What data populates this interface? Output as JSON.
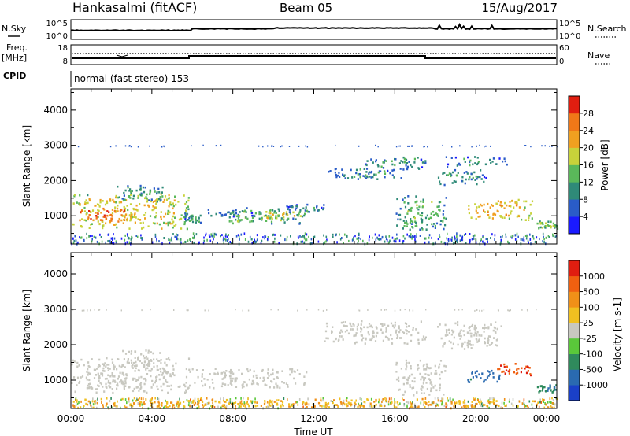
{
  "header": {
    "station": "Hankasalmi (fitACF)",
    "beam": "Beam 05",
    "date": "15/Aug/2017"
  },
  "noise_panel": {
    "left_label": "N.Sky",
    "left_ticks": [
      "10^5",
      "10^0"
    ],
    "right_label": "N.Search",
    "right_ticks": [
      "10^5",
      "10^0"
    ]
  },
  "freq_panel": {
    "left_label_1": "Freq.",
    "left_label_2": "[MHz]",
    "left_ticks": [
      "18",
      "8"
    ],
    "right_label": "Nave",
    "right_ticks": [
      "60",
      "0"
    ]
  },
  "cpid_panel": {
    "label": "CPID",
    "mode_text": "normal (fast stereo) 153"
  },
  "chart_data": [
    {
      "type": "heatmap",
      "title": "",
      "quantity": "Power",
      "xlabel": "Time UT",
      "ylabel": "Slant Range [km]",
      "xlim": [
        "00:00",
        "24:00"
      ],
      "x_tick_labels": [
        "00:00",
        "04:00",
        "08:00",
        "12:00",
        "16:00",
        "20:00",
        "00:00"
      ],
      "ylim": [
        200,
        4600
      ],
      "y_tick_labels": [
        "1000",
        "2000",
        "3000",
        "4000"
      ],
      "colorbar": {
        "label": "Power [dB]",
        "tick_labels": [
          "4",
          "8",
          "12",
          "16",
          "20",
          "24",
          "28"
        ],
        "range": [
          0,
          32
        ],
        "colors": [
          "#1a1aff",
          "#2a5cc8",
          "#2f8a78",
          "#5ab85a",
          "#c8d23a",
          "#f0a020",
          "#f07818",
          "#e01e10"
        ]
      },
      "regions": [
        {
          "t": [
            0.0,
            5.8
          ],
          "r": [
            650,
            1650
          ],
          "level": 0.62
        },
        {
          "t": [
            0.2,
            3.0
          ],
          "r": [
            850,
            1250
          ],
          "level": 0.85
        },
        {
          "t": [
            5.6,
            6.4
          ],
          "r": [
            800,
            1100
          ],
          "level": 0.35
        },
        {
          "t": [
            6.2,
            9.0
          ],
          "r": [
            1000,
            1200
          ],
          "level": 0.25
        },
        {
          "t": [
            7.5,
            11.5
          ],
          "r": [
            800,
            1250
          ],
          "level": 0.42
        },
        {
          "t": [
            9.2,
            11.6
          ],
          "r": [
            950,
            1150
          ],
          "level": 0.6
        },
        {
          "t": [
            10.5,
            12.5
          ],
          "r": [
            1100,
            1350
          ],
          "level": 0.28
        },
        {
          "t": [
            2.2,
            4.5
          ],
          "r": [
            1400,
            1900
          ],
          "level": 0.35
        },
        {
          "t": [
            12.5,
            16.5
          ],
          "r": [
            2050,
            2400
          ],
          "level": 0.3
        },
        {
          "t": [
            14.5,
            17.5
          ],
          "r": [
            2300,
            2700
          ],
          "level": 0.32
        },
        {
          "t": [
            16.0,
            18.5
          ],
          "r": [
            600,
            1600
          ],
          "level": 0.4
        },
        {
          "t": [
            18.0,
            20.5
          ],
          "r": [
            1900,
            2350
          ],
          "level": 0.35
        },
        {
          "t": [
            18.5,
            21.5
          ],
          "r": [
            2400,
            2700
          ],
          "level": 0.3
        },
        {
          "t": [
            19.5,
            22.8
          ],
          "r": [
            900,
            1500
          ],
          "level": 0.68
        },
        {
          "t": [
            23.0,
            24.0
          ],
          "r": [
            650,
            900
          ],
          "level": 0.5
        }
      ]
    },
    {
      "type": "heatmap",
      "title": "",
      "quantity": "Velocity",
      "xlabel": "Time UT",
      "ylabel": "Slant Range [km]",
      "xlim": [
        "00:00",
        "24:00"
      ],
      "x_tick_labels": [
        "00:00",
        "04:00",
        "08:00",
        "12:00",
        "16:00",
        "20:00",
        "00:00"
      ],
      "ylim": [
        200,
        4600
      ],
      "y_tick_labels": [
        "1000",
        "2000",
        "3000",
        "4000"
      ],
      "colorbar": {
        "label": "Velocity [m s-1]",
        "tick_labels": [
          "1000",
          "500",
          "100",
          "25",
          "-25",
          "-100",
          "-500",
          "-1000"
        ],
        "range": [
          -1000,
          1000
        ],
        "colors": [
          "#1a40c8",
          "#2a6ab0",
          "#2f8a5c",
          "#5ac83a",
          "#c8c8c0",
          "#f0c020",
          "#f09018",
          "#f06010",
          "#e01e10"
        ]
      },
      "regions": [
        {
          "t": [
            0.0,
            5.8
          ],
          "r": [
            650,
            1650
          ],
          "level": 0.5
        },
        {
          "t": [
            5.6,
            11.6
          ],
          "r": [
            800,
            1350
          ],
          "level": 0.5
        },
        {
          "t": [
            2.2,
            4.5
          ],
          "r": [
            1400,
            1900
          ],
          "level": 0.5
        },
        {
          "t": [
            12.5,
            17.5
          ],
          "r": [
            2050,
            2700
          ],
          "level": 0.5
        },
        {
          "t": [
            16.0,
            18.5
          ],
          "r": [
            600,
            1600
          ],
          "level": 0.5
        },
        {
          "t": [
            18.0,
            21.5
          ],
          "r": [
            1900,
            2700
          ],
          "level": 0.5
        },
        {
          "t": [
            19.5,
            21.2
          ],
          "r": [
            950,
            1350
          ],
          "level": 0.18
        },
        {
          "t": [
            21.0,
            22.8
          ],
          "r": [
            1150,
            1500
          ],
          "level": 0.88
        },
        {
          "t": [
            0.0,
            24.0
          ],
          "r": [
            250,
            500
          ],
          "level": 0.65
        },
        {
          "t": [
            23.0,
            24.0
          ],
          "r": [
            650,
            900
          ],
          "level": 0.25
        }
      ]
    }
  ]
}
